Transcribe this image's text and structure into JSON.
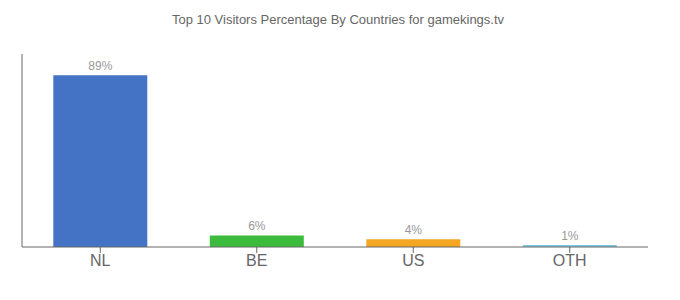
{
  "chart_data": {
    "type": "bar",
    "title": "Top 10 Visitors Percentage By Countries for gamekings.tv",
    "categories": [
      "NL",
      "BE",
      "US",
      "OTH"
    ],
    "values": [
      89,
      6,
      4,
      1
    ],
    "value_labels": [
      "89%",
      "6%",
      "4%",
      "1%"
    ],
    "colors": [
      "#4472c4",
      "#3dbb3d",
      "#f5a623",
      "#7ec8e3"
    ],
    "ylim": [
      0,
      100
    ],
    "data_labels": true,
    "tick_labels": "x",
    "grid": false
  }
}
